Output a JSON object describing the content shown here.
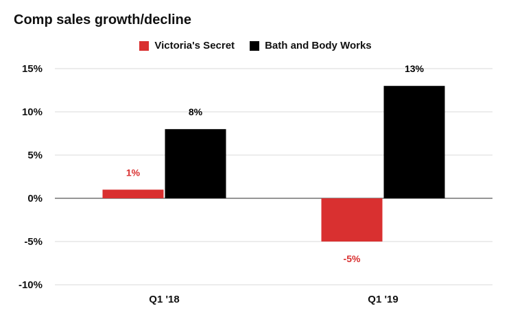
{
  "chart_data": {
    "type": "bar",
    "title": "Comp sales growth/decline",
    "categories": [
      "Q1 '18",
      "Q1 '19"
    ],
    "series": [
      {
        "name": "Victoria's Secret",
        "values": [
          1,
          -5
        ],
        "labels": [
          "1%",
          "-5%"
        ],
        "color": "#d93030"
      },
      {
        "name": "Bath and Body Works",
        "values": [
          8,
          13
        ],
        "labels": [
          "8%",
          "13%"
        ],
        "color": "#000000"
      }
    ],
    "y_ticks": [
      15,
      10,
      5,
      0,
      -5,
      -10
    ],
    "y_tick_labels": [
      "15%",
      "10%",
      "5%",
      "0%",
      "-5%",
      "-10%"
    ],
    "ylim": [
      -10,
      15
    ],
    "xlabel": "",
    "ylabel": "",
    "grid": true,
    "legend_position": "top"
  }
}
